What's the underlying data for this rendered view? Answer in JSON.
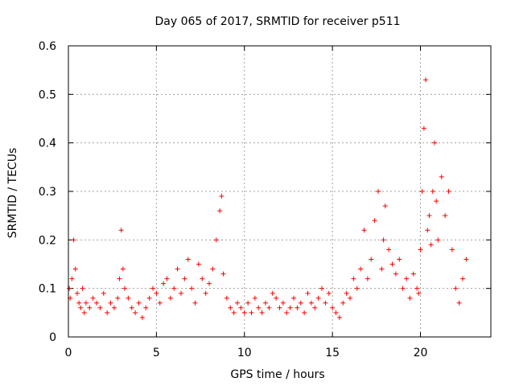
{
  "chart_data": {
    "type": "scatter",
    "title": "Day 065 of 2017, SRMTID for receiver p511",
    "xlabel": "GPS time / hours",
    "ylabel": "SRMTID / TECUs",
    "xlim": [
      0,
      24
    ],
    "ylim": [
      0,
      0.6
    ],
    "xticks": [
      0,
      5,
      10,
      15,
      20
    ],
    "yticks": [
      0,
      0.1,
      0.2,
      0.3,
      0.4,
      0.5,
      0.6
    ],
    "xtick_labels": [
      "0",
      "5",
      "10",
      "15",
      "20"
    ],
    "ytick_labels": [
      "0",
      "0.1",
      "0.2",
      "0.3",
      "0.4",
      "0.5",
      "0.6"
    ],
    "grid": true,
    "marker": "plus",
    "series_color": "#ff0000",
    "series": [
      {
        "name": "SRMTID",
        "x": [
          0.05,
          0.1,
          0.2,
          0.3,
          0.4,
          0.5,
          0.6,
          0.7,
          0.8,
          0.9,
          1.0,
          1.2,
          1.4,
          1.6,
          1.8,
          2.0,
          2.2,
          2.4,
          2.6,
          2.8,
          2.9,
          3.0,
          3.1,
          3.2,
          3.4,
          3.6,
          3.8,
          4.0,
          4.2,
          4.4,
          4.6,
          4.8,
          5.0,
          5.2,
          5.4,
          5.6,
          5.8,
          6.0,
          6.2,
          6.4,
          6.6,
          6.8,
          7.0,
          7.2,
          7.4,
          7.6,
          7.8,
          8.0,
          8.2,
          8.4,
          8.6,
          8.7,
          8.8,
          9.0,
          9.2,
          9.4,
          9.6,
          9.8,
          10.0,
          10.2,
          10.4,
          10.6,
          10.8,
          11.0,
          11.2,
          11.4,
          11.6,
          11.8,
          12.0,
          12.2,
          12.4,
          12.6,
          12.8,
          13.0,
          13.2,
          13.4,
          13.6,
          13.8,
          14.0,
          14.2,
          14.4,
          14.6,
          14.8,
          15.0,
          15.2,
          15.4,
          15.6,
          15.8,
          16.0,
          16.2,
          16.4,
          16.6,
          16.8,
          17.0,
          17.2,
          17.4,
          17.6,
          17.8,
          17.9,
          18.0,
          18.2,
          18.4,
          18.6,
          18.8,
          19.0,
          19.2,
          19.4,
          19.6,
          19.8,
          19.9,
          20.0,
          20.1,
          20.2,
          20.3,
          20.4,
          20.5,
          20.6,
          20.7,
          20.8,
          20.9,
          21.0,
          21.2,
          21.4,
          21.6,
          21.8,
          22.0,
          22.2,
          22.4,
          22.6
        ],
        "y": [
          0.1,
          0.08,
          0.12,
          0.2,
          0.14,
          0.09,
          0.07,
          0.06,
          0.1,
          0.05,
          0.07,
          0.06,
          0.08,
          0.07,
          0.06,
          0.09,
          0.05,
          0.07,
          0.06,
          0.08,
          0.12,
          0.22,
          0.14,
          0.1,
          0.08,
          0.06,
          0.05,
          0.07,
          0.04,
          0.06,
          0.08,
          0.1,
          0.09,
          0.07,
          0.11,
          0.12,
          0.08,
          0.1,
          0.14,
          0.09,
          0.12,
          0.16,
          0.1,
          0.07,
          0.15,
          0.12,
          0.09,
          0.11,
          0.14,
          0.2,
          0.26,
          0.29,
          0.13,
          0.08,
          0.06,
          0.05,
          0.07,
          0.06,
          0.05,
          0.07,
          0.05,
          0.08,
          0.06,
          0.05,
          0.07,
          0.06,
          0.09,
          0.08,
          0.06,
          0.07,
          0.05,
          0.06,
          0.08,
          0.06,
          0.07,
          0.05,
          0.09,
          0.07,
          0.06,
          0.08,
          0.1,
          0.07,
          0.09,
          0.06,
          0.05,
          0.04,
          0.07,
          0.09,
          0.08,
          0.12,
          0.1,
          0.14,
          0.22,
          0.12,
          0.16,
          0.24,
          0.3,
          0.14,
          0.2,
          0.27,
          0.18,
          0.15,
          0.13,
          0.16,
          0.1,
          0.12,
          0.08,
          0.13,
          0.1,
          0.09,
          0.18,
          0.3,
          0.43,
          0.53,
          0.22,
          0.25,
          0.19,
          0.3,
          0.4,
          0.28,
          0.2,
          0.33,
          0.25,
          0.3,
          0.18,
          0.1,
          0.07,
          0.12,
          0.16
        ]
      }
    ]
  }
}
